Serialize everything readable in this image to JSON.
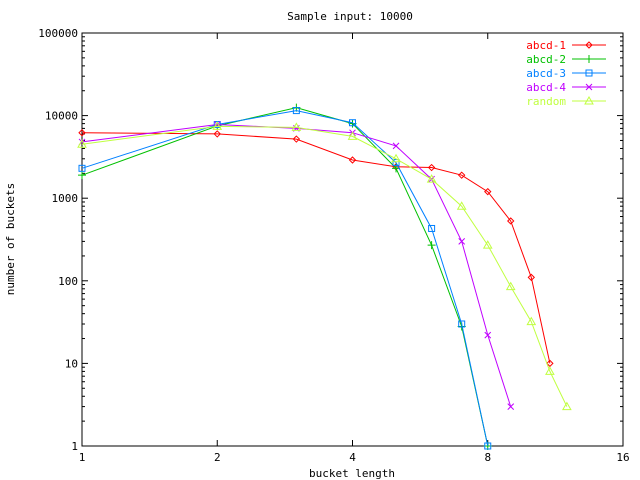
{
  "chart_data": {
    "type": "line",
    "title": "Sample input: 10000",
    "xlabel": "bucket length",
    "ylabel": "number of buckets",
    "xscale": "log2",
    "yscale": "log10",
    "xlim": [
      1,
      16
    ],
    "ylim": [
      1,
      100000
    ],
    "x_ticks": [
      1,
      2,
      4,
      8,
      16
    ],
    "x_tick_labels": [
      "1",
      "2",
      "4",
      "8",
      "16"
    ],
    "y_ticks": [
      1,
      10,
      100,
      1000,
      10000,
      100000
    ],
    "y_tick_labels": [
      "1",
      "10",
      "100",
      "1000",
      "10000",
      "100000"
    ],
    "grid": false,
    "legend_position": "top-right",
    "series": [
      {
        "name": "abcd-1",
        "color": "#ff0000",
        "marker": "diamond",
        "x": [
          1,
          2,
          3,
          4,
          5,
          6,
          7,
          8,
          9,
          10,
          11
        ],
        "y": [
          6200,
          6000,
          5200,
          2900,
          2400,
          2350,
          1900,
          1200,
          530,
          110,
          10
        ]
      },
      {
        "name": "abcd-2",
        "color": "#00c000",
        "marker": "plus",
        "x": [
          1,
          2,
          3,
          4,
          5,
          6,
          7,
          8
        ],
        "y": [
          1900,
          7500,
          12500,
          8000,
          2300,
          270,
          28,
          1
        ]
      },
      {
        "name": "abcd-3",
        "color": "#0080ff",
        "marker": "square",
        "x": [
          1,
          2,
          3,
          4,
          5,
          6,
          7,
          8
        ],
        "y": [
          2300,
          7800,
          11500,
          8200,
          2700,
          430,
          30,
          1
        ]
      },
      {
        "name": "abcd-4",
        "color": "#c000ff",
        "marker": "cross",
        "x": [
          1,
          2,
          3,
          4,
          5,
          6,
          7,
          8,
          9
        ],
        "y": [
          4800,
          7800,
          7000,
          6200,
          4300,
          1700,
          300,
          22,
          3
        ]
      },
      {
        "name": "random",
        "color": "#c0ff40",
        "marker": "triangle",
        "x": [
          1,
          2,
          3,
          4,
          5,
          6,
          7,
          8,
          9,
          10,
          11,
          12
        ],
        "y": [
          4500,
          7400,
          7200,
          5600,
          3000,
          1700,
          800,
          270,
          85,
          32,
          8,
          3
        ]
      }
    ]
  }
}
